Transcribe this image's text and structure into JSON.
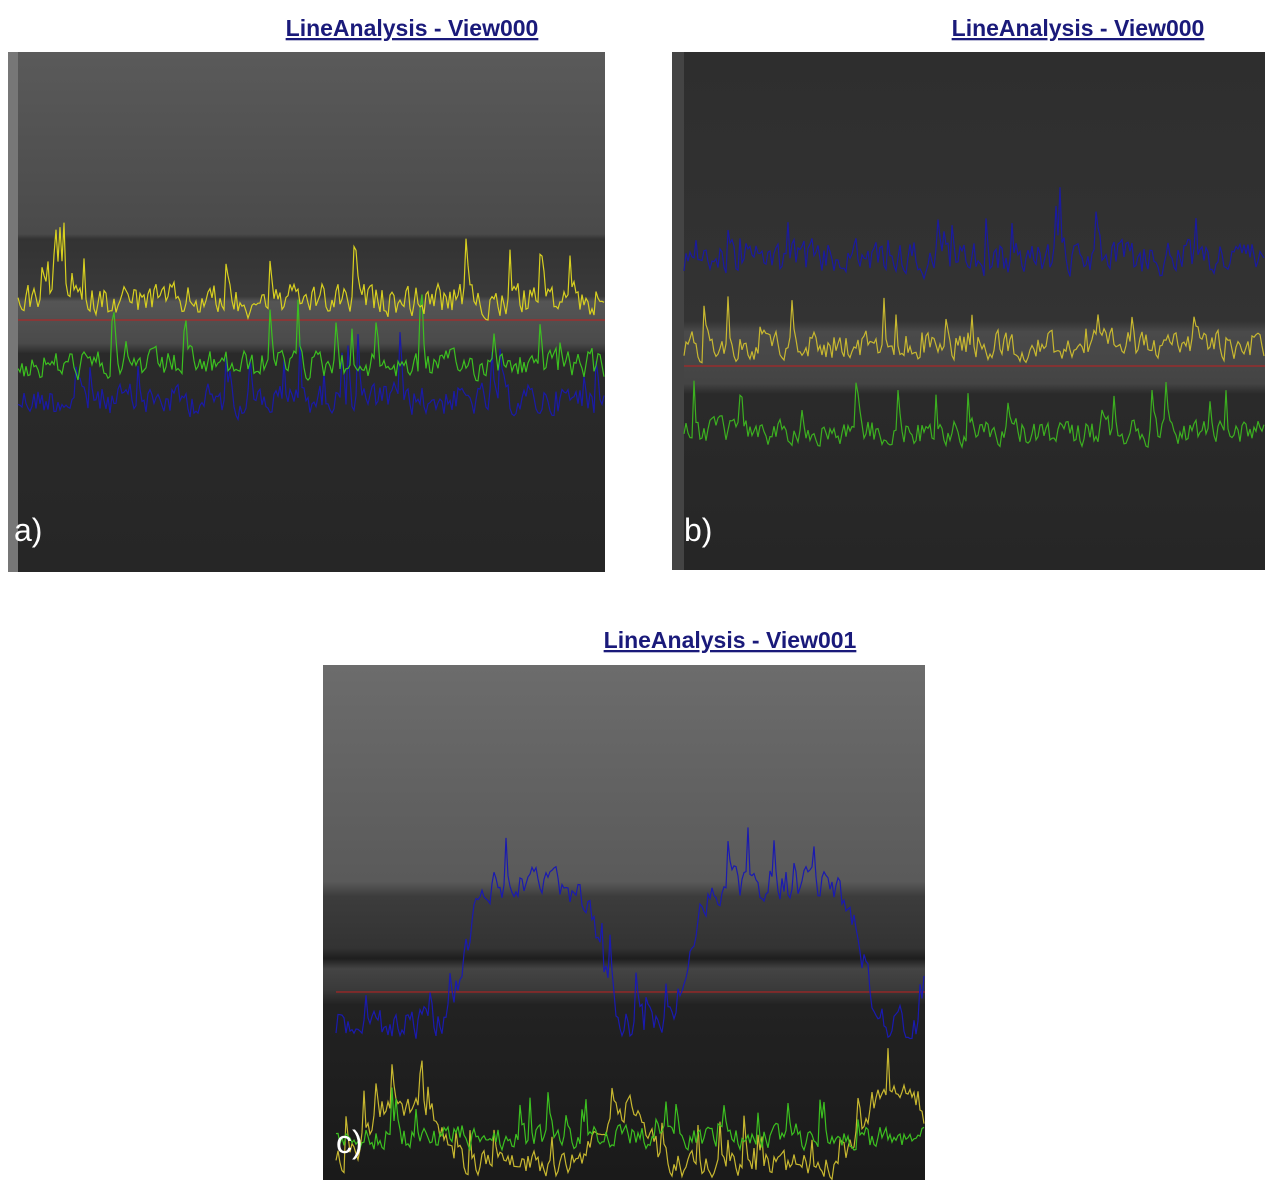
{
  "panels": [
    {
      "title": "LineAnalysis - View000",
      "label": "a)"
    },
    {
      "title": "LineAnalysis - View000",
      "label": "b)"
    },
    {
      "title": "LineAnalysis - View001",
      "label": "c)"
    }
  ]
}
